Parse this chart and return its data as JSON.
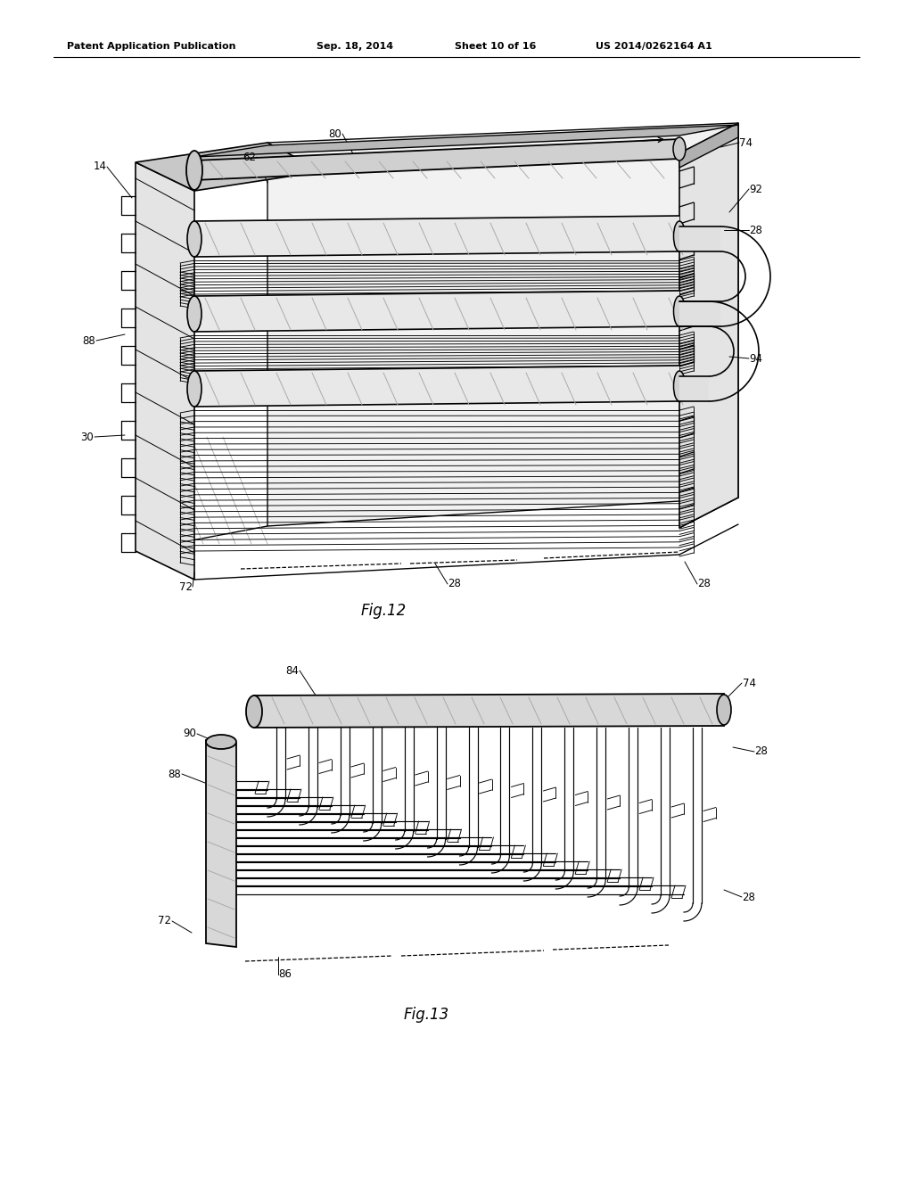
{
  "bg_color": "#ffffff",
  "header_text": "Patent Application Publication",
  "header_date": "Sep. 18, 2014",
  "header_sheet": "Sheet 10 of 16",
  "header_patent": "US 2014/0262164 A1",
  "fig12_label": "Fig.12",
  "fig13_label": "Fig.13",
  "line_color": "#000000",
  "light_gray": "#d8d8d8",
  "mid_gray": "#b0b0b0",
  "dark_gray": "#606060"
}
